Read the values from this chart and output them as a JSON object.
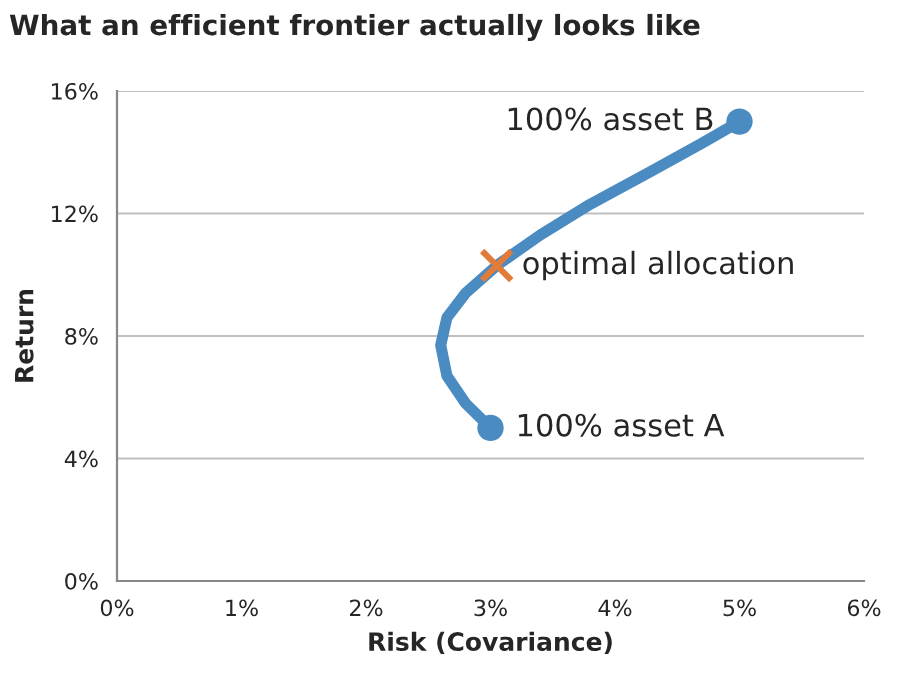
{
  "chart_data": {
    "type": "line",
    "title": "What an efficient frontier actually looks like",
    "xlabel": "Risk (Covariance)",
    "ylabel": "Return",
    "series": [
      {
        "color": "#4a8bc2",
        "x": [
          3,
          2.8,
          2.65,
          2.6,
          2.65,
          2.8,
          3.05,
          3.4,
          3.8,
          4.3,
          4.7,
          5
        ],
        "values": [
          5,
          5.8,
          6.7,
          7.7,
          8.6,
          9.4,
          10.3,
          11.3,
          12.3,
          13.4,
          14.3,
          15
        ]
      },
      {
        "type": "scatter",
        "color": "#4a8bc2",
        "marker": "circle",
        "x": [
          3,
          5
        ],
        "values": [
          5,
          15
        ]
      },
      {
        "type": "scatter",
        "color": "#e07b39",
        "marker": "cross",
        "x": [
          3.05
        ],
        "values": [
          10.3
        ]
      }
    ],
    "annotations": [
      {
        "text": "100% asset B",
        "x": 5,
        "y": 15
      },
      {
        "text": "optimal allocation",
        "x": 3.05,
        "y": 10.3
      },
      {
        "text": "100% asset A",
        "x": 3,
        "y": 5
      }
    ],
    "xlim": [
      0,
      6
    ],
    "ylim": [
      0,
      16
    ],
    "xticks": [
      {
        "value": 0,
        "label": "0%"
      },
      {
        "value": 1,
        "label": "1%"
      },
      {
        "value": 2,
        "label": "2%"
      },
      {
        "value": 3,
        "label": "3%"
      },
      {
        "value": 4,
        "label": "4%"
      },
      {
        "value": 5,
        "label": "5%"
      },
      {
        "value": 6,
        "label": "6%"
      }
    ],
    "yticks": [
      {
        "value": 0,
        "label": "0%"
      },
      {
        "value": 4,
        "label": "4%"
      },
      {
        "value": 8,
        "label": "8%"
      },
      {
        "value": 12,
        "label": "12%"
      },
      {
        "value": 16,
        "label": "16%"
      }
    ],
    "grid": "y",
    "legend": false
  }
}
